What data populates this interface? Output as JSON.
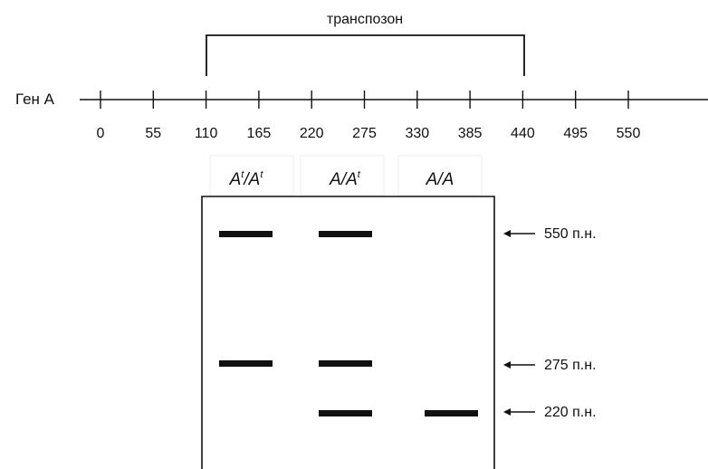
{
  "gene_map": {
    "gene_label": "Ген А",
    "transposon_label": "транспозон",
    "ticks": [
      "0",
      "55",
      "110",
      "165",
      "220",
      "275",
      "330",
      "385",
      "440",
      "495",
      "550"
    ],
    "transposon_start": "110",
    "transposon_end": "440"
  },
  "gel": {
    "lanes": [
      {
        "allele1": "A",
        "sup1": "t",
        "sep": "/",
        "allele2": "A",
        "sup2": "t",
        "bands": [
          "550",
          "275"
        ]
      },
      {
        "allele1": "A",
        "sup1": "",
        "sep": "/",
        "allele2": "A",
        "sup2": "t",
        "bands": [
          "550",
          "275",
          "220"
        ]
      },
      {
        "allele1": "A",
        "sup1": "",
        "sep": "/",
        "allele2": "A",
        "sup2": "",
        "bands": [
          "220"
        ]
      }
    ],
    "markers": [
      {
        "size": "550",
        "label": "550 п.н."
      },
      {
        "size": "275",
        "label": "275 п.н."
      },
      {
        "size": "220",
        "label": "220 п.н."
      }
    ]
  },
  "colors": {
    "ink": "#111111",
    "background": "#ffffff"
  }
}
